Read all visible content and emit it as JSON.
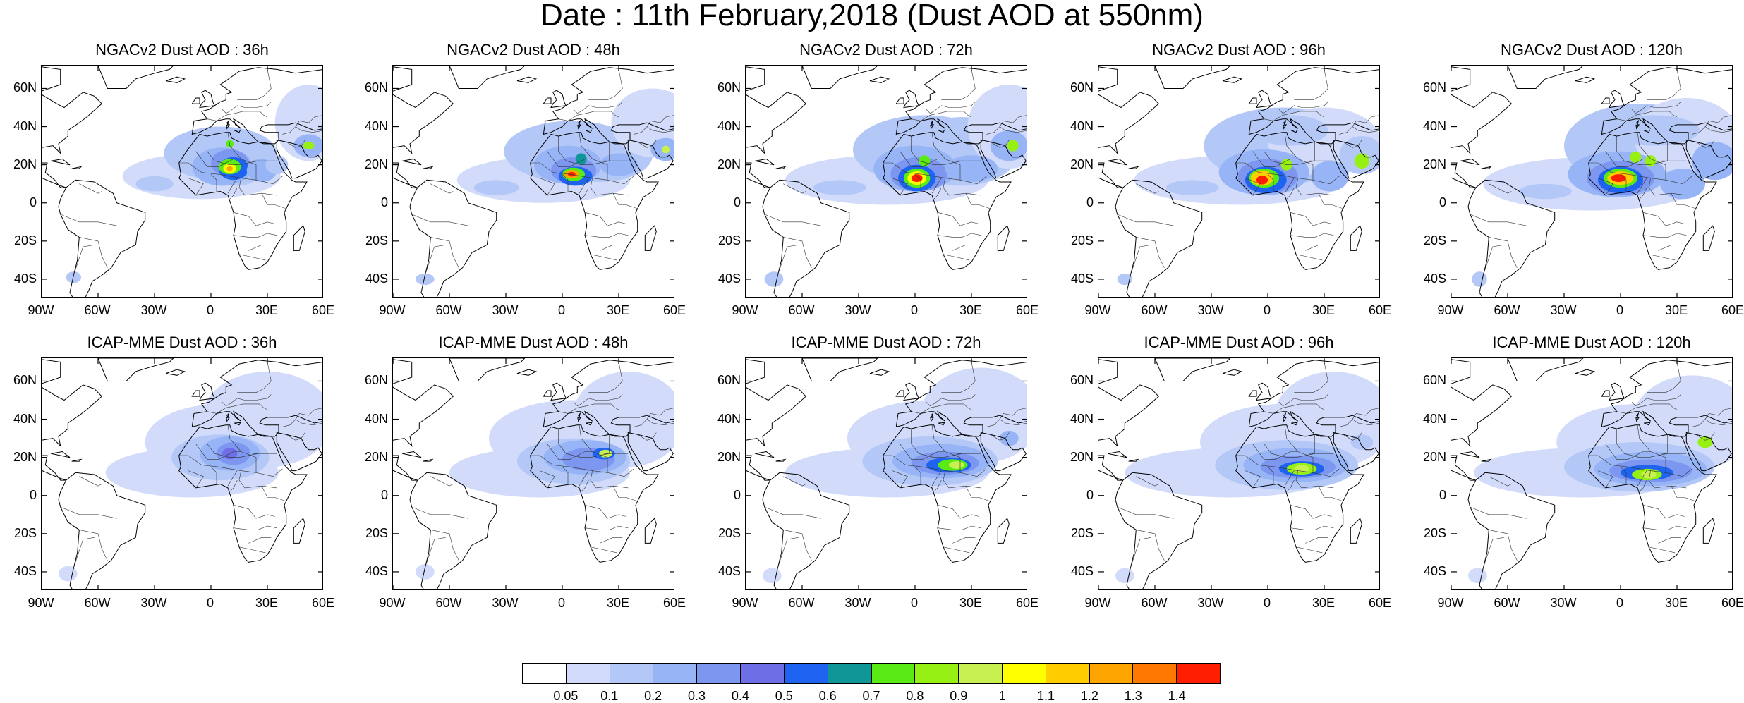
{
  "title": "Date : 11th February,2018 (Dust AOD at 550nm)",
  "rows": [
    {
      "model": "NGACv2",
      "panels": [
        {
          "title": "NGACv2 Dust AOD : 36h",
          "hour": 36
        },
        {
          "title": "NGACv2 Dust AOD : 48h",
          "hour": 48
        },
        {
          "title": "NGACv2 Dust AOD : 72h",
          "hour": 72
        },
        {
          "title": "NGACv2 Dust AOD : 96h",
          "hour": 96
        },
        {
          "title": "NGACv2 Dust AOD : 120h",
          "hour": 120
        }
      ]
    },
    {
      "model": "ICAP-MME",
      "panels": [
        {
          "title": "ICAP-MME Dust AOD : 36h",
          "hour": 36
        },
        {
          "title": "ICAP-MME Dust AOD : 48h",
          "hour": 48
        },
        {
          "title": "ICAP-MME Dust AOD : 72h",
          "hour": 72
        },
        {
          "title": "ICAP-MME Dust AOD : 96h",
          "hour": 96
        },
        {
          "title": "ICAP-MME Dust AOD : 120h",
          "hour": 120
        }
      ]
    }
  ],
  "lat_labels": [
    "60N",
    "40N",
    "20N",
    "0",
    "20S",
    "40S"
  ],
  "lat_values": [
    60,
    40,
    20,
    0,
    -20,
    -40
  ],
  "lon_labels": [
    "90W",
    "60W",
    "30W",
    "0",
    "30E",
    "60E"
  ],
  "lon_values": [
    -90,
    -60,
    -30,
    0,
    30,
    60
  ],
  "map_extent": {
    "lon": [
      -90,
      60
    ],
    "lat": [
      -50,
      72
    ]
  },
  "colorbar": {
    "labels": [
      "0.05",
      "0.1",
      "0.2",
      "0.3",
      "0.4",
      "0.5",
      "0.6",
      "0.7",
      "0.8",
      "0.9",
      "1",
      "1.1",
      "1.2",
      "1.3",
      "1.4"
    ],
    "colors": [
      "#ffffff",
      "#d2dcfa",
      "#b4c8f8",
      "#96b4f6",
      "#7d96f0",
      "#6e6ee6",
      "#1e64f0",
      "#0f9696",
      "#5aeb14",
      "#96f014",
      "#c8f050",
      "#ffff00",
      "#ffcd00",
      "#ffa500",
      "#ff7800",
      "#ff1e00"
    ]
  }
}
